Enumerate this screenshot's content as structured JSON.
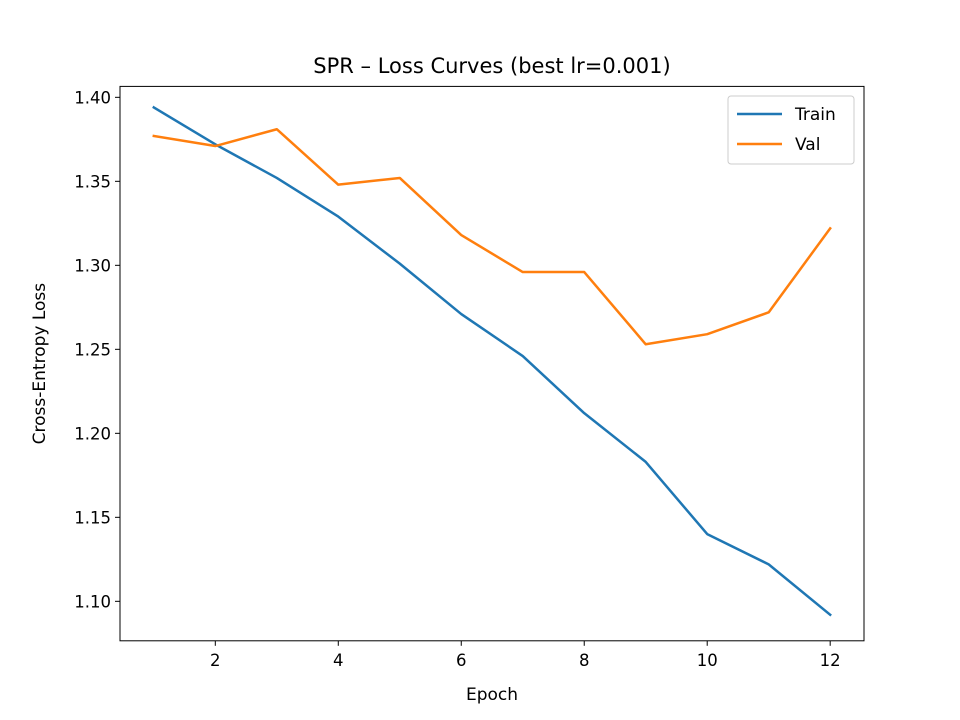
{
  "chart_data": {
    "type": "line",
    "title": "SPR – Loss Curves (best lr=0.001)",
    "xlabel": "Epoch",
    "ylabel": "Cross-Entropy Loss",
    "xlim": [
      0.45,
      12.55
    ],
    "ylim": [
      1.0765,
      1.4065
    ],
    "x_ticks": [
      2,
      4,
      6,
      8,
      10,
      12
    ],
    "y_ticks": [
      1.1,
      1.15,
      1.2,
      1.25,
      1.3,
      1.35,
      1.4
    ],
    "x_tick_labels": [
      "2",
      "4",
      "6",
      "8",
      "10",
      "12"
    ],
    "y_tick_labels": [
      "1.10",
      "1.15",
      "1.20",
      "1.25",
      "1.30",
      "1.35",
      "1.40"
    ],
    "grid": false,
    "legend_position": "top-right",
    "x": [
      1,
      2,
      3,
      4,
      5,
      6,
      7,
      8,
      9,
      10,
      11,
      12
    ],
    "series": [
      {
        "name": "Train",
        "color": "#1f77b4",
        "values": [
          1.394,
          1.372,
          1.352,
          1.329,
          1.301,
          1.271,
          1.246,
          1.212,
          1.183,
          1.14,
          1.122,
          1.092
        ]
      },
      {
        "name": "Val",
        "color": "#ff7f0e",
        "values": [
          1.377,
          1.371,
          1.381,
          1.348,
          1.352,
          1.318,
          1.296,
          1.296,
          1.253,
          1.259,
          1.272,
          1.322
        ]
      }
    ]
  }
}
